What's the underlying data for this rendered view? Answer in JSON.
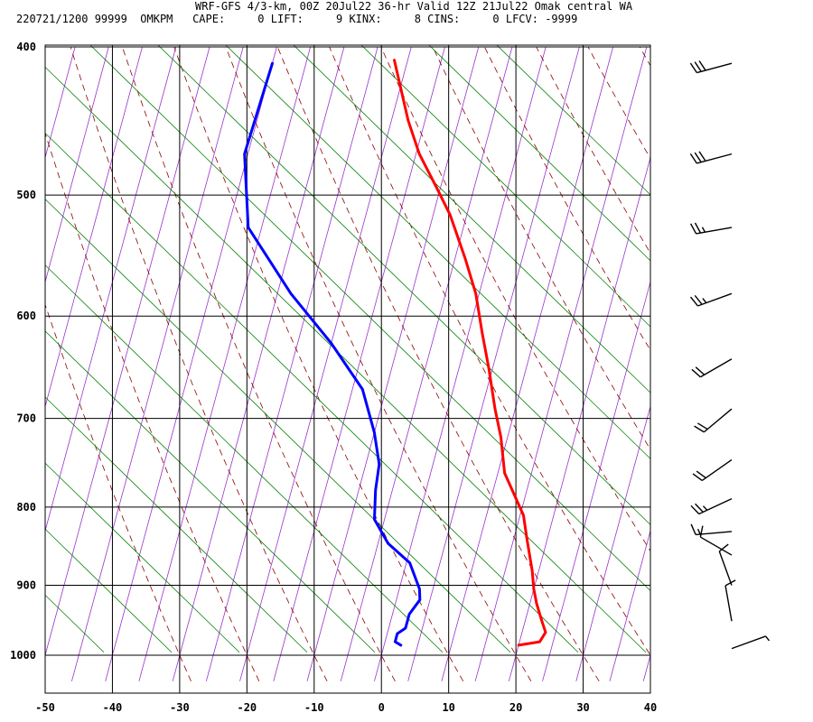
{
  "header": {
    "title": "WRF-GFS 4/3-km, 00Z 20Jul22 36-hr Valid 12Z 21Jul22 Omak central WA",
    "subtitle": "220721/1200 99999  OMKPM   CAPE:     0 LIFT:     9 KINX:     8 CINS:     0 LFCV: -9999"
  },
  "chart_data": {
    "type": "line",
    "title": "WRF-GFS 4/3-km, 00Z 20Jul22 36-hr Valid 12Z 21Jul22 Omak central WA",
    "xlabel": "",
    "ylabel": "",
    "xlim": [
      -50,
      40
    ],
    "ylim": [
      1040,
      400
    ],
    "x_ticks": [
      "-50",
      "-40",
      "-30",
      "-20",
      "-10",
      "0",
      "10",
      "20",
      "30",
      "40"
    ],
    "p_ticks": [
      "400",
      "500",
      "600",
      "700",
      "800",
      "900",
      "1000"
    ],
    "grid": true,
    "series": [
      {
        "name": "",
        "color": "#ff0000",
        "points": [
          [
            20,
            985
          ],
          [
            23,
            980
          ],
          [
            23.5,
            966
          ],
          [
            22.5,
            950
          ],
          [
            21,
            925
          ],
          [
            20,
            905
          ],
          [
            19,
            880
          ],
          [
            17,
            840
          ],
          [
            15.5,
            810
          ],
          [
            11,
            760
          ],
          [
            9,
            720
          ],
          [
            7,
            690
          ],
          [
            4.5,
            650
          ],
          [
            2,
            615
          ],
          [
            -0.5,
            580
          ],
          [
            -3.5,
            550
          ],
          [
            -7.5,
            515
          ],
          [
            -10.5,
            495
          ],
          [
            -14.5,
            470
          ],
          [
            -17.5,
            447
          ],
          [
            -22,
            408
          ]
        ]
      },
      {
        "name": "",
        "color": "#0000ff",
        "points": [
          [
            2.5,
            985
          ],
          [
            1.5,
            980
          ],
          [
            1.5,
            968
          ],
          [
            2.5,
            960
          ],
          [
            2.5,
            940
          ],
          [
            3.5,
            920
          ],
          [
            3,
            905
          ],
          [
            0.5,
            870
          ],
          [
            -3.5,
            845
          ],
          [
            -6.5,
            815
          ],
          [
            -7.5,
            780
          ],
          [
            -8,
            750
          ],
          [
            -10,
            715
          ],
          [
            -13.5,
            670
          ],
          [
            -20,
            625
          ],
          [
            -28,
            580
          ],
          [
            -37,
            525
          ],
          [
            -40.5,
            470
          ],
          [
            -40,
            410
          ]
        ]
      }
    ],
    "wind_barbs": [
      {
        "p": 410,
        "dir_deg": 255,
        "speed_kt": 30
      },
      {
        "p": 470,
        "dir_deg": 255,
        "speed_kt": 30
      },
      {
        "p": 525,
        "dir_deg": 260,
        "speed_kt": 25
      },
      {
        "p": 580,
        "dir_deg": 250,
        "speed_kt": 25
      },
      {
        "p": 640,
        "dir_deg": 240,
        "speed_kt": 20
      },
      {
        "p": 690,
        "dir_deg": 230,
        "speed_kt": 20
      },
      {
        "p": 745,
        "dir_deg": 235,
        "speed_kt": 20
      },
      {
        "p": 790,
        "dir_deg": 245,
        "speed_kt": 25
      },
      {
        "p": 830,
        "dir_deg": 265,
        "speed_kt": 15
      },
      {
        "p": 860,
        "dir_deg": 300,
        "speed_kt": 10
      },
      {
        "p": 900,
        "dir_deg": 340,
        "speed_kt": 10
      },
      {
        "p": 950,
        "dir_deg": 350,
        "speed_kt": 10
      },
      {
        "p": 990,
        "dir_deg": 70,
        "speed_kt": 5
      }
    ],
    "background_lines": {
      "isotherm_color": "#000000",
      "skewed_isotherm_color": "#9932cc",
      "dry_adiabat_color": "#8b0000",
      "moist_adiabat_color": "#008000"
    }
  }
}
